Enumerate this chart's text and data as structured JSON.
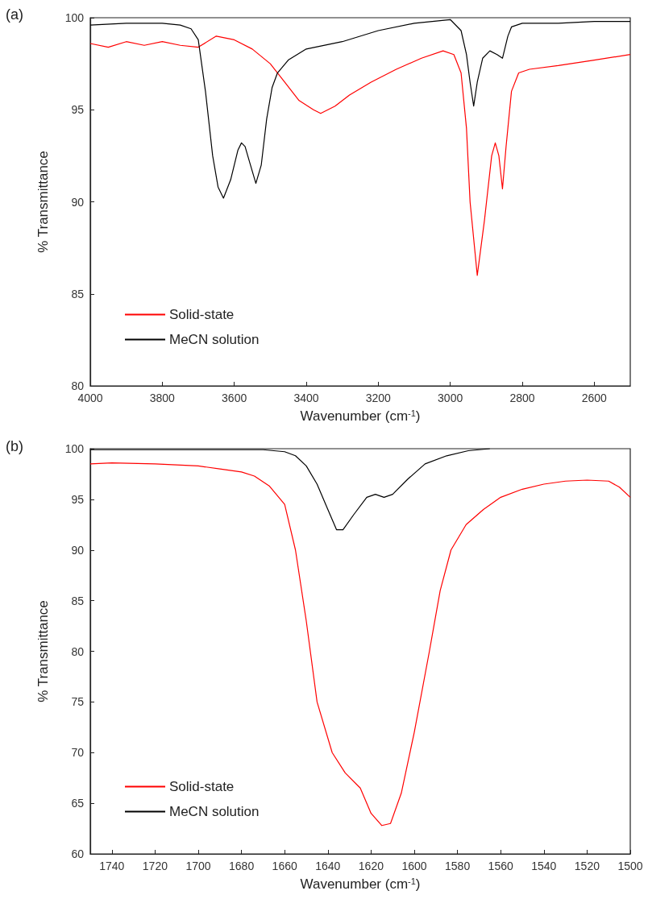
{
  "chart_data": [
    {
      "type": "line",
      "title": "(a)",
      "xlabel": "Wavenumber (cm$^{-1}$)",
      "ylabel": "% Transmittance",
      "xlim": [
        4000,
        2500
      ],
      "xticks": [
        4000,
        3800,
        3600,
        3400,
        3200,
        3000,
        2800,
        2600
      ],
      "ylim": [
        80,
        100
      ],
      "yticks": [
        80,
        85,
        90,
        95,
        100
      ],
      "grid": false,
      "legend": "bottom left",
      "marker": "none",
      "line_style": "solid",
      "series": [
        {
          "name": "Solid-state",
          "color": "#ff0000",
          "x": [
            4000,
            3950,
            3900,
            3850,
            3800,
            3750,
            3700,
            3650,
            3600,
            3550,
            3500,
            3460,
            3420,
            3380,
            3360,
            3320,
            3280,
            3220,
            3150,
            3080,
            3020,
            2990,
            2970,
            2955,
            2945,
            2925,
            2905,
            2885,
            2875,
            2865,
            2855,
            2845,
            2830,
            2810,
            2780,
            2700,
            2600,
            2500
          ],
          "values": [
            98.6,
            98.4,
            98.7,
            98.5,
            98.7,
            98.5,
            98.4,
            99.0,
            98.8,
            98.3,
            97.5,
            96.5,
            95.5,
            95.0,
            94.8,
            95.2,
            95.8,
            96.5,
            97.2,
            97.8,
            98.2,
            98.0,
            97.0,
            94.0,
            90.0,
            86.0,
            89.0,
            92.5,
            93.2,
            92.5,
            90.7,
            93.0,
            96.0,
            97.0,
            97.2,
            97.4,
            97.7,
            98.0
          ]
        },
        {
          "name": "MeCN solution",
          "color": "#000000",
          "x": [
            4000,
            3900,
            3800,
            3750,
            3720,
            3700,
            3680,
            3660,
            3645,
            3630,
            3610,
            3590,
            3580,
            3570,
            3555,
            3540,
            3525,
            3510,
            3495,
            3480,
            3450,
            3400,
            3300,
            3200,
            3100,
            3000,
            2970,
            2955,
            2945,
            2935,
            2925,
            2910,
            2890,
            2870,
            2855,
            2840,
            2830,
            2800,
            2700,
            2600,
            2500
          ],
          "values": [
            99.6,
            99.7,
            99.7,
            99.6,
            99.4,
            98.8,
            96.0,
            92.5,
            90.8,
            90.2,
            91.2,
            92.8,
            93.2,
            93.0,
            92.0,
            91.0,
            92.0,
            94.5,
            96.2,
            97.0,
            97.7,
            98.3,
            98.7,
            99.3,
            99.7,
            99.9,
            99.3,
            98.0,
            96.5,
            95.2,
            96.5,
            97.8,
            98.2,
            98.0,
            97.8,
            99.0,
            99.5,
            99.7,
            99.7,
            99.8,
            99.8
          ]
        }
      ]
    },
    {
      "type": "line",
      "title": "(b)",
      "xlabel": "Wavenumber (cm$^{-1}$)",
      "ylabel": "% Transmittance",
      "xlim": [
        1750,
        1500
      ],
      "xticks": [
        1740,
        1720,
        1700,
        1680,
        1660,
        1640,
        1620,
        1600,
        1580,
        1560,
        1540,
        1520,
        1500
      ],
      "ylim": [
        60,
        100
      ],
      "yticks": [
        60,
        65,
        70,
        75,
        80,
        85,
        90,
        95,
        100
      ],
      "grid": false,
      "legend": "bottom left",
      "marker": "none",
      "line_style": "solid",
      "series": [
        {
          "name": "Solid-state",
          "color": "#ff0000",
          "x": [
            1750,
            1740,
            1720,
            1700,
            1690,
            1680,
            1674,
            1667,
            1660,
            1655,
            1650,
            1645,
            1638,
            1632,
            1625,
            1620,
            1615,
            1611,
            1606,
            1600,
            1593,
            1588,
            1583,
            1576,
            1568,
            1560,
            1550,
            1540,
            1530,
            1520,
            1510,
            1505,
            1500
          ],
          "values": [
            98.5,
            98.6,
            98.5,
            98.3,
            98.0,
            97.7,
            97.3,
            96.3,
            94.5,
            90.0,
            83.0,
            75.0,
            70.0,
            68.0,
            66.5,
            64.0,
            62.8,
            63.0,
            66.0,
            72.0,
            80.0,
            86.0,
            90.0,
            92.5,
            94.0,
            95.2,
            96.0,
            96.5,
            96.8,
            96.9,
            96.8,
            96.2,
            95.2
          ]
        },
        {
          "name": "MeCN solution",
          "color": "#000000",
          "x": [
            1750,
            1700,
            1670,
            1660,
            1655,
            1650,
            1645,
            1640,
            1636,
            1633,
            1628,
            1622,
            1618,
            1614,
            1610,
            1603,
            1595,
            1585,
            1575,
            1565
          ],
          "values": [
            99.9,
            99.9,
            99.9,
            99.7,
            99.3,
            98.3,
            96.5,
            94.0,
            92.0,
            92.0,
            93.5,
            95.2,
            95.5,
            95.2,
            95.5,
            97.0,
            98.5,
            99.3,
            99.8,
            100.0
          ]
        }
      ]
    }
  ]
}
